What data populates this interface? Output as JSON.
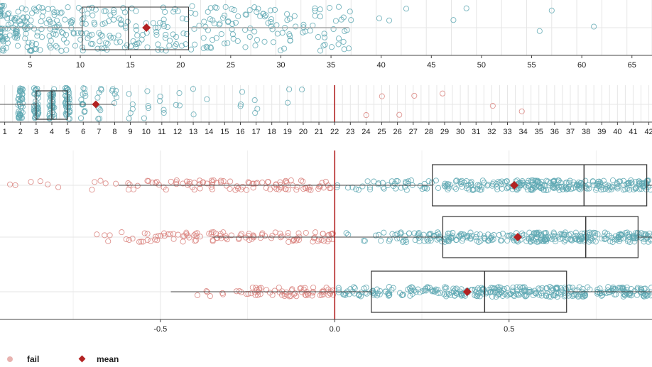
{
  "colors": {
    "pass": "#5ea8b3",
    "fail": "#d9817c",
    "mean": "#b22222",
    "threshold": "#b22222",
    "box": "#333333",
    "grid": "#e6e6e6"
  },
  "legend": {
    "fail_label": "fail",
    "mean_label": "mean"
  },
  "chart_data": [
    {
      "type": "box",
      "orientation": "horizontal",
      "xlim": [
        2,
        67
      ],
      "ticks": [
        5,
        10,
        15,
        20,
        25,
        30,
        35,
        40,
        45,
        50,
        55,
        60,
        65
      ],
      "tick_labels": [
        "5",
        "10",
        "15",
        "20",
        "25",
        "30",
        "35",
        "40",
        "45",
        "50",
        "55",
        "60",
        "65"
      ],
      "box": {
        "q1": 10.2,
        "median": 14.8,
        "q3": 20.8,
        "whisker_low": 2,
        "whisker_high": 36.8
      },
      "mean": 16.6,
      "point_range": [
        2,
        37
      ],
      "outliers": [
        39.8,
        40.8,
        42.5,
        47.2,
        48.5,
        55.8,
        57,
        61.2
      ],
      "grid": true
    },
    {
      "type": "box",
      "orientation": "horizontal",
      "xlim": [
        0.7,
        42.2
      ],
      "ticks": [
        1,
        2,
        3,
        4,
        5,
        6,
        7,
        8,
        9,
        10,
        11,
        12,
        13,
        14,
        15,
        16,
        17,
        18,
        19,
        20,
        21,
        22,
        23,
        24,
        25,
        26,
        27,
        28,
        29,
        30,
        31,
        32,
        33,
        34,
        35,
        36,
        37,
        38,
        39,
        40,
        41,
        42
      ],
      "tick_labels": [
        "1",
        "2",
        "3",
        "4",
        "5",
        "6",
        "7",
        "8",
        "9",
        "10",
        "11",
        "12",
        "13",
        "14",
        "15",
        "16",
        "17",
        "18",
        "19",
        "20",
        "21",
        "22",
        "23",
        "24",
        "25",
        "26",
        "27",
        "28",
        "29",
        "30",
        "31",
        "32",
        "33",
        "34",
        "35",
        "36",
        "37",
        "38",
        "39",
        "40",
        "41",
        "42"
      ],
      "threshold": 22,
      "box": {
        "q1": 3,
        "median": 4,
        "q3": 5,
        "whisker_low": 0.7,
        "whisker_high": 8
      },
      "mean": 6.8,
      "pass_values": [
        2,
        3,
        4,
        5,
        6,
        7,
        8,
        9,
        10,
        11,
        12,
        13,
        14,
        16,
        17,
        19,
        20
      ],
      "fail_values": [
        24,
        25,
        26,
        27,
        29,
        32,
        34
      ],
      "grid": true
    },
    {
      "type": "box",
      "orientation": "horizontal",
      "xlim": [
        -0.96,
        0.91
      ],
      "ticks": [
        -0.5,
        0.0,
        0.5
      ],
      "tick_labels": [
        "-0.5",
        "0.0",
        "0.5"
      ],
      "threshold": 0.0,
      "rows": [
        {
          "min": -0.96,
          "fail_range": [
            -0.96,
            0.0
          ],
          "pass_range": [
            0.0,
            0.91
          ],
          "box": {
            "q1": 0.28,
            "median": 0.715,
            "q3": 0.895,
            "whisker_low": -0.62,
            "whisker_high": 0.91
          },
          "mean": 0.515
        },
        {
          "min": -0.78,
          "fail_range": [
            -0.78,
            0.0
          ],
          "pass_range": [
            0.0,
            0.91
          ],
          "box": {
            "q1": 0.31,
            "median": 0.72,
            "q3": 0.87,
            "whisker_low": -0.35,
            "whisker_high": 0.91
          },
          "mean": 0.525
        },
        {
          "min": -0.47,
          "fail_range": [
            -0.47,
            0.0
          ],
          "pass_range": [
            0.0,
            0.91
          ],
          "box": {
            "q1": 0.105,
            "median": 0.43,
            "q3": 0.665,
            "whisker_low": -0.47,
            "whisker_high": 0.91
          },
          "mean": 0.38
        }
      ],
      "legend": [
        "fail",
        "mean"
      ],
      "legend_position": "bottom-left",
      "grid": true
    }
  ]
}
